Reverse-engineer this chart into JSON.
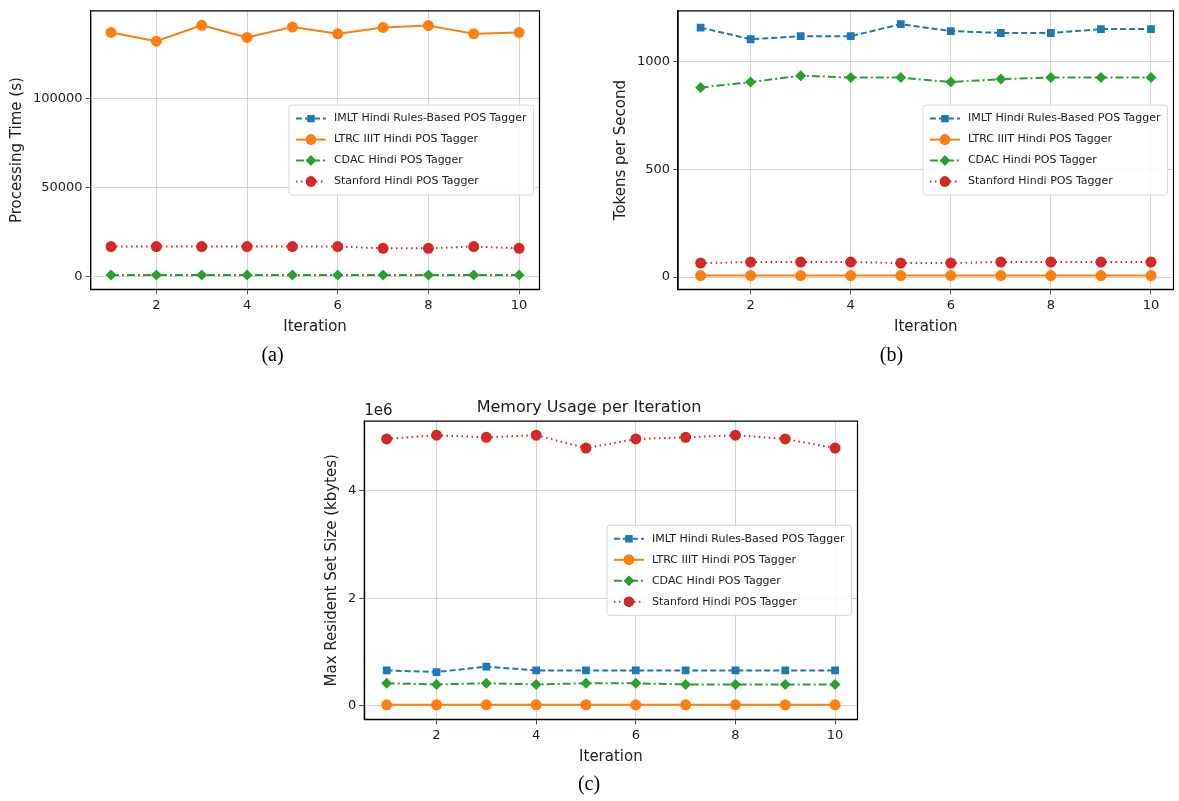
{
  "chart_data": [
    {
      "type": "line",
      "xlabel": "Iteration",
      "ylabel": "Processing Time (s)",
      "x": [
        1,
        2,
        3,
        4,
        5,
        6,
        7,
        8,
        9,
        10
      ],
      "xlim": [
        0.55,
        10.45
      ],
      "xticks": [
        2,
        4,
        6,
        8,
        10
      ],
      "ylim": [
        -7000,
        149000
      ],
      "yticks": [
        0,
        50000,
        100000
      ],
      "grid": true,
      "legend": "right",
      "annotations": [
        "(a)"
      ],
      "series": [
        {
          "name": "IMLT Hindi Rules-Based POS Tagger",
          "color": "#1f77b4",
          "marker": "square",
          "line_style": "dashed",
          "values": [
            null,
            null,
            null,
            null,
            null,
            null,
            null,
            null,
            null,
            null
          ]
        },
        {
          "name": "LTRC IIIT Hindi POS Tagger",
          "color": "#ff7f0e",
          "marker": "circle",
          "line_style": "solid",
          "values": [
            136900,
            132000,
            140900,
            134100,
            139900,
            136100,
            139700,
            140700,
            136100,
            136900
          ]
        },
        {
          "name": "CDAC Hindi POS Tagger",
          "color": "#2ca02c",
          "marker": "diamond",
          "line_style": "dashdot",
          "values": [
            1000,
            1000,
            1000,
            1000,
            1000,
            1000,
            1000,
            1000,
            1000,
            1000
          ]
        },
        {
          "name": "Stanford Hindi POS Tagger",
          "color": "#d62728",
          "marker": "circle",
          "line_style": "dotted",
          "values": [
            17000,
            17000,
            17000,
            17000,
            17000,
            17000,
            16000,
            16000,
            17000,
            16000
          ]
        }
      ]
    },
    {
      "type": "line",
      "xlabel": "Iteration",
      "ylabel": "Tokens per Second",
      "x": [
        1,
        2,
        3,
        4,
        5,
        6,
        7,
        8,
        9,
        10
      ],
      "xlim": [
        0.55,
        10.45
      ],
      "xticks": [
        2,
        4,
        6,
        8,
        10
      ],
      "ylim": [
        -57,
        1236
      ],
      "yticks": [
        0,
        500,
        1000
      ],
      "grid": true,
      "legend": "right",
      "annotations": [
        "(b)"
      ],
      "series": [
        {
          "name": "IMLT Hindi Rules-Based POS Tagger",
          "color": "#1f77b4",
          "marker": "square",
          "line_style": "dashed",
          "values": [
            1158,
            1104,
            1118,
            1118,
            1174,
            1142,
            1133,
            1133,
            1151,
            1151
          ]
        },
        {
          "name": "LTRC IIIT Hindi POS Tagger",
          "color": "#ff7f0e",
          "marker": "circle",
          "line_style": "solid",
          "values": [
            7,
            7,
            7,
            7,
            7,
            7,
            7,
            7,
            7,
            7
          ]
        },
        {
          "name": "CDAC Hindi POS Tagger",
          "color": "#2ca02c",
          "marker": "diamond",
          "line_style": "dashdot",
          "values": [
            880,
            905,
            935,
            926,
            926,
            905,
            919,
            926,
            926,
            926
          ]
        },
        {
          "name": "Stanford Hindi POS Tagger",
          "color": "#d62728",
          "marker": "circle",
          "line_style": "dotted",
          "values": [
            65,
            70,
            70,
            70,
            65,
            65,
            70,
            70,
            70,
            70
          ]
        }
      ]
    },
    {
      "type": "line",
      "title": "Memory Usage per Iteration",
      "xlabel": "Iteration",
      "ylabel": "Max Resident Set Size (kbytes)",
      "x": [
        1,
        2,
        3,
        4,
        5,
        6,
        7,
        8,
        9,
        10
      ],
      "xlim": [
        0.55,
        10.45
      ],
      "xticks": [
        2,
        4,
        6,
        8,
        10
      ],
      "ylim": [
        -0.25,
        5.29
      ],
      "yticks": [
        0,
        2,
        4
      ],
      "grid": true,
      "legend": "right",
      "annotations": [
        "1e6",
        "(c)"
      ],
      "series": [
        {
          "name": "IMLT Hindi Rules-Based POS Tagger",
          "color": "#1f77b4",
          "marker": "square",
          "line_style": "dashed",
          "values": [
            0.66,
            0.63,
            0.73,
            0.66,
            0.66,
            0.66,
            0.66,
            0.66,
            0.66,
            0.66
          ]
        },
        {
          "name": "LTRC IIIT Hindi POS Tagger",
          "color": "#ff7f0e",
          "marker": "circle",
          "line_style": "solid",
          "values": [
            0.02,
            0.02,
            0.02,
            0.02,
            0.02,
            0.02,
            0.02,
            0.02,
            0.02,
            0.02
          ]
        },
        {
          "name": "CDAC Hindi POS Tagger",
          "color": "#2ca02c",
          "marker": "diamond",
          "line_style": "dashdot",
          "values": [
            0.42,
            0.4,
            0.42,
            0.4,
            0.42,
            0.42,
            0.4,
            0.4,
            0.4,
            0.4
          ]
        },
        {
          "name": "Stanford Hindi POS Tagger",
          "color": "#d62728",
          "marker": "circle",
          "line_style": "dotted",
          "values": [
            4.96,
            5.03,
            4.99,
            5.03,
            4.79,
            4.96,
            4.99,
            5.03,
            4.96,
            4.79
          ]
        }
      ]
    }
  ]
}
